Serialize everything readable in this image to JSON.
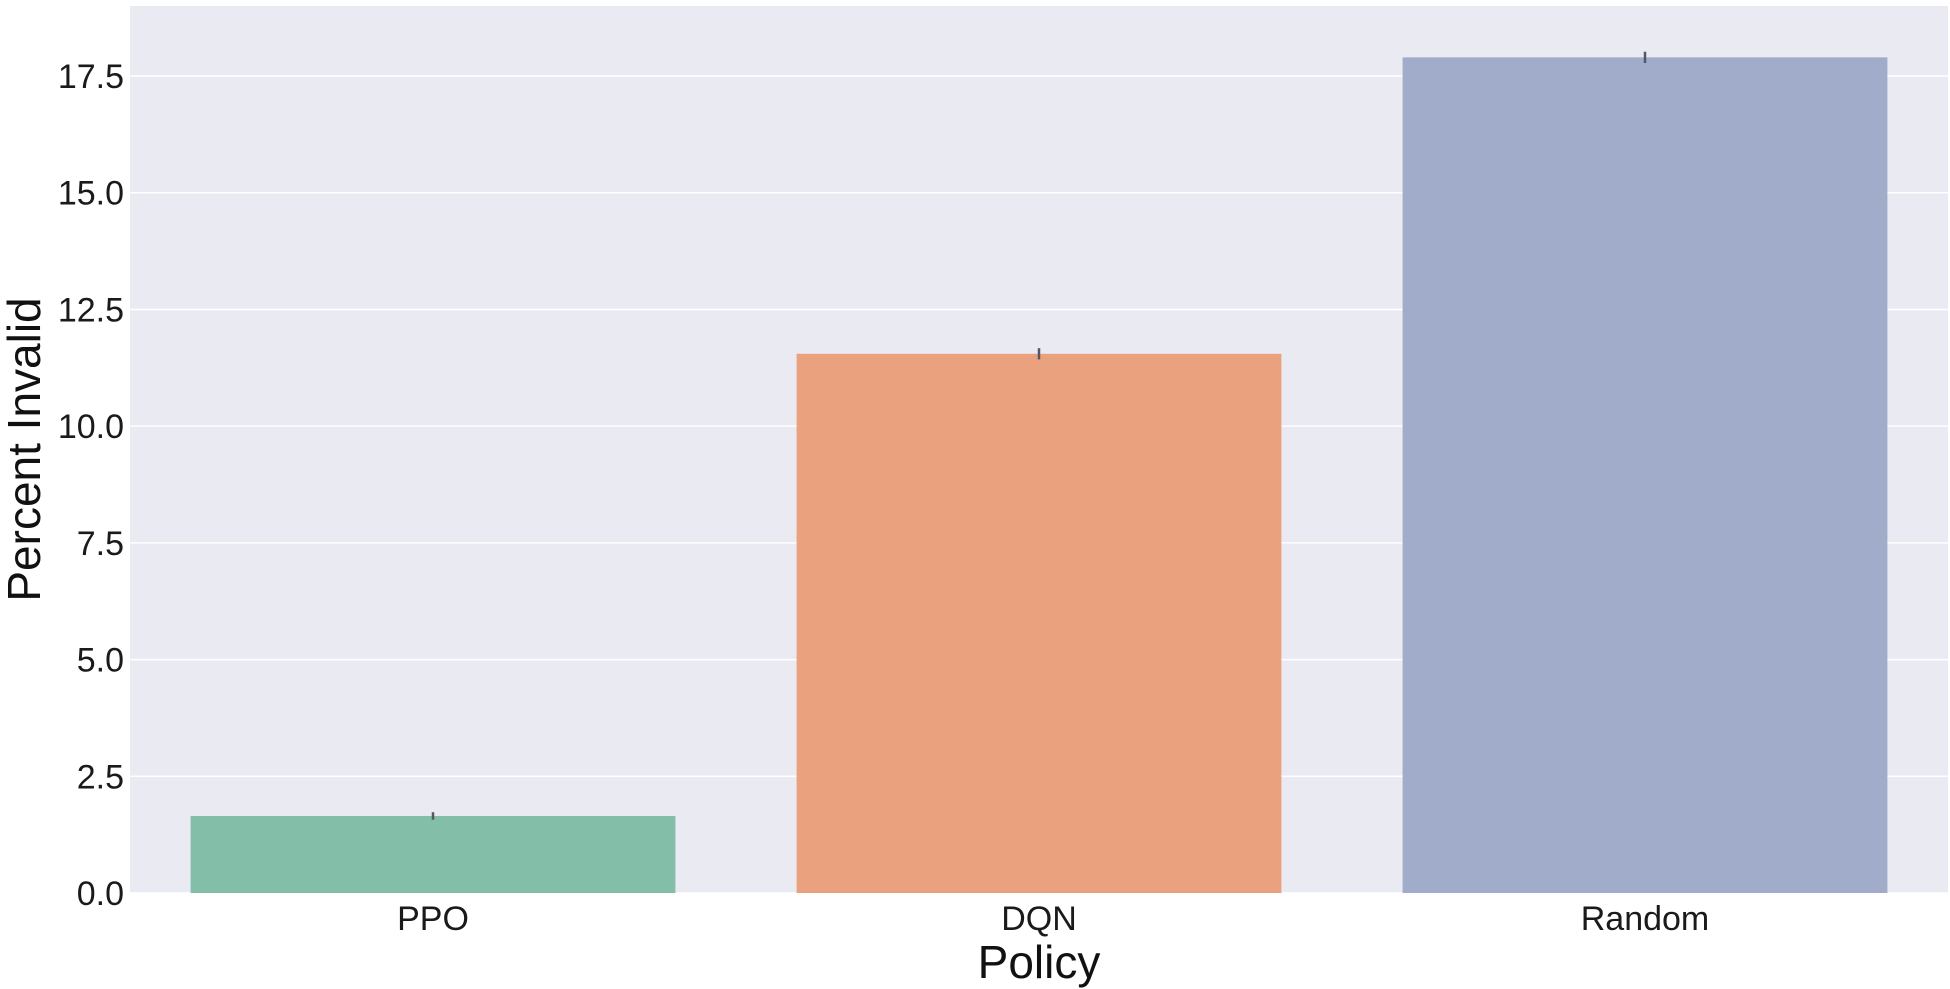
{
  "chart_data": {
    "type": "bar",
    "categories": [
      "PPO",
      "DQN",
      "Random"
    ],
    "values": [
      1.65,
      11.55,
      17.9
    ],
    "error": [
      0.08,
      0.12,
      0.12
    ],
    "xlabel": "Policy",
    "ylabel": "Percent Invalid",
    "ylim": [
      0,
      19
    ],
    "yticks": [
      0.0,
      2.5,
      5.0,
      7.5,
      10.0,
      12.5,
      15.0,
      17.5
    ],
    "ytick_labels": [
      "0.0",
      "2.5",
      "5.0",
      "7.5",
      "10.0",
      "12.5",
      "15.0",
      "17.5"
    ],
    "grid": true,
    "legend": "none",
    "colors": {
      "bars": [
        "#82bea8",
        "#eaa17d",
        "#a0acca"
      ],
      "plot_background": "#eaeaf2",
      "grid": "#ffffff",
      "errorbar": "#555566"
    }
  }
}
